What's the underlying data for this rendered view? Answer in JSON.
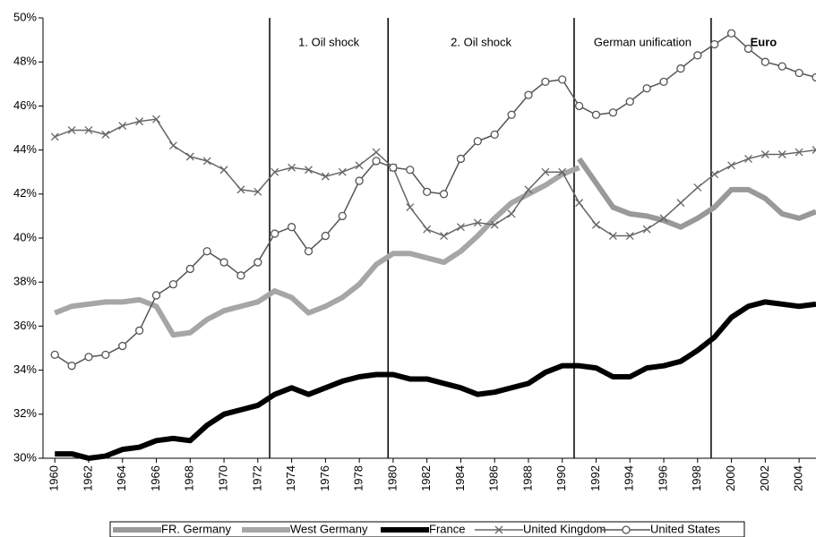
{
  "chart_data": {
    "type": "line",
    "x": [
      1960,
      1961,
      1962,
      1963,
      1964,
      1965,
      1966,
      1967,
      1968,
      1969,
      1970,
      1971,
      1972,
      1973,
      1974,
      1975,
      1976,
      1977,
      1978,
      1979,
      1980,
      1981,
      1982,
      1983,
      1984,
      1985,
      1986,
      1987,
      1988,
      1989,
      1990,
      1991,
      1992,
      1993,
      1994,
      1995,
      1996,
      1997,
      1998,
      1999,
      2000,
      2001,
      2002,
      2003,
      2004,
      2005
    ],
    "xlim": [
      1959.3,
      2005
    ],
    "xticks": [
      1960,
      1962,
      1964,
      1966,
      1968,
      1970,
      1972,
      1974,
      1976,
      1978,
      1980,
      1982,
      1984,
      1986,
      1988,
      1990,
      1992,
      1994,
      1996,
      1998,
      2000,
      2002,
      2004
    ],
    "ylim": [
      30,
      50
    ],
    "yticks": [
      {
        "value": 30,
        "label": "30%"
      },
      {
        "value": 32,
        "label": "32%"
      },
      {
        "value": 34,
        "label": "34%"
      },
      {
        "value": 36,
        "label": "36%"
      },
      {
        "value": 38,
        "label": "38%"
      },
      {
        "value": 40,
        "label": "40%"
      },
      {
        "value": 42,
        "label": "42%"
      },
      {
        "value": 44,
        "label": "44%"
      },
      {
        "value": 46,
        "label": "46%"
      },
      {
        "value": 48,
        "label": "48%"
      },
      {
        "value": 50,
        "label": "50%"
      }
    ],
    "annotations": [
      {
        "x": 1972.7,
        "label": "1. Oil shock"
      },
      {
        "x": 1979.7,
        "label": "2. Oil shock"
      },
      {
        "x": 1990.7,
        "label": "German unification"
      },
      {
        "x": 1998.8,
        "label": "Euro",
        "bold": true
      }
    ],
    "series": [
      {
        "name": "FR. Germany",
        "color": "#999999",
        "width": 6,
        "marker": "none",
        "values": [
          null,
          null,
          null,
          null,
          null,
          null,
          null,
          null,
          null,
          null,
          null,
          null,
          null,
          null,
          null,
          null,
          null,
          null,
          null,
          null,
          null,
          null,
          null,
          null,
          null,
          null,
          null,
          null,
          null,
          null,
          null,
          43.6,
          42.5,
          41.4,
          41.1,
          41.0,
          40.8,
          40.5,
          40.9,
          41.4,
          42.2,
          42.2,
          41.8,
          41.1,
          40.9,
          41.2
        ]
      },
      {
        "name": "West Germany",
        "color": "#a6a6a6",
        "width": 6,
        "marker": "none",
        "values": [
          36.6,
          36.9,
          37.0,
          37.1,
          37.1,
          37.2,
          36.9,
          35.6,
          35.7,
          36.3,
          36.7,
          36.9,
          37.1,
          37.6,
          37.3,
          36.6,
          36.9,
          37.3,
          37.9,
          38.8,
          39.3,
          39.3,
          39.1,
          38.9,
          39.4,
          40.1,
          40.9,
          41.6,
          42.0,
          42.4,
          42.9,
          43.2,
          null,
          null,
          null,
          null,
          null,
          null,
          null,
          null,
          null,
          null,
          null,
          null,
          null,
          null
        ]
      },
      {
        "name": "France",
        "color": "#000000",
        "width": 6,
        "marker": "none",
        "values": [
          30.2,
          30.2,
          30.0,
          30.1,
          30.4,
          30.5,
          30.8,
          30.9,
          30.8,
          31.5,
          32.0,
          32.2,
          32.4,
          32.9,
          33.2,
          32.9,
          33.2,
          33.5,
          33.7,
          33.8,
          33.8,
          33.6,
          33.6,
          33.4,
          33.2,
          32.9,
          33.0,
          33.2,
          33.4,
          33.9,
          34.2,
          34.2,
          34.1,
          33.7,
          33.7,
          34.1,
          34.2,
          34.4,
          34.9,
          35.5,
          36.4,
          36.9,
          37.1,
          37.0,
          36.9,
          37.0
        ]
      },
      {
        "name": "United Kingdom",
        "color": "#666666",
        "width": 1.5,
        "marker": "x",
        "values": [
          44.6,
          44.9,
          44.9,
          44.7,
          45.1,
          45.3,
          45.4,
          44.2,
          43.7,
          43.5,
          43.1,
          42.2,
          42.1,
          43.0,
          43.2,
          43.1,
          42.8,
          43.0,
          43.3,
          43.9,
          43.2,
          41.4,
          40.4,
          40.1,
          40.5,
          40.7,
          40.6,
          41.1,
          42.2,
          43.0,
          43.0,
          41.6,
          40.6,
          40.1,
          40.1,
          40.4,
          40.9,
          41.6,
          42.3,
          42.9,
          43.3,
          43.6,
          43.8,
          43.8,
          43.9,
          44.0
        ]
      },
      {
        "name": "United States",
        "color": "#555555",
        "width": 1.5,
        "marker": "circle",
        "values": [
          34.7,
          34.2,
          34.6,
          34.7,
          35.1,
          35.8,
          37.4,
          37.9,
          38.6,
          39.4,
          38.9,
          38.3,
          38.9,
          40.2,
          40.5,
          39.4,
          40.1,
          41.0,
          42.6,
          43.5,
          43.2,
          43.1,
          42.1,
          42.0,
          43.6,
          44.4,
          44.7,
          45.6,
          46.5,
          47.1,
          47.2,
          46.0,
          45.6,
          45.7,
          46.2,
          46.8,
          47.1,
          47.7,
          48.3,
          48.8,
          49.3,
          48.6,
          48.0,
          47.8,
          47.5,
          47.3
        ]
      }
    ],
    "grid": false
  }
}
